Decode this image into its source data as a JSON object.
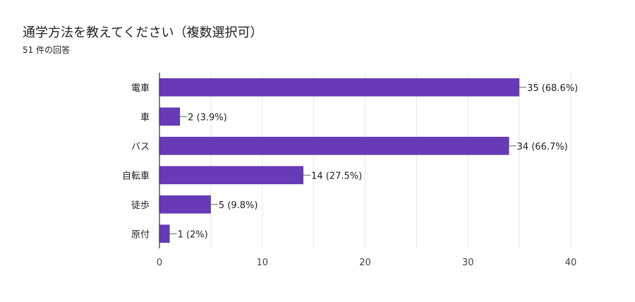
{
  "title": "通学方法を教えてください（複数選択可）",
  "subtitle": "51 件の回答",
  "colors": {
    "bar": "#673ab7",
    "grid": "#e8e8e8",
    "axis": "#333333",
    "text": "#202124"
  },
  "chart_data": {
    "type": "bar",
    "orientation": "horizontal",
    "categories": [
      "電車",
      "車",
      "バス",
      "自転車",
      "徒歩",
      "原付"
    ],
    "values": [
      35,
      2,
      34,
      14,
      5,
      1
    ],
    "value_labels": [
      "35 (68.6%)",
      "2 (3.9%)",
      "34 (66.7%)",
      "14 (27.5%)",
      "5 (9.8%)",
      "1 (2%)"
    ],
    "xlim": [
      0,
      40
    ],
    "xticks": [
      0,
      10,
      20,
      30,
      40
    ],
    "grid": true
  }
}
